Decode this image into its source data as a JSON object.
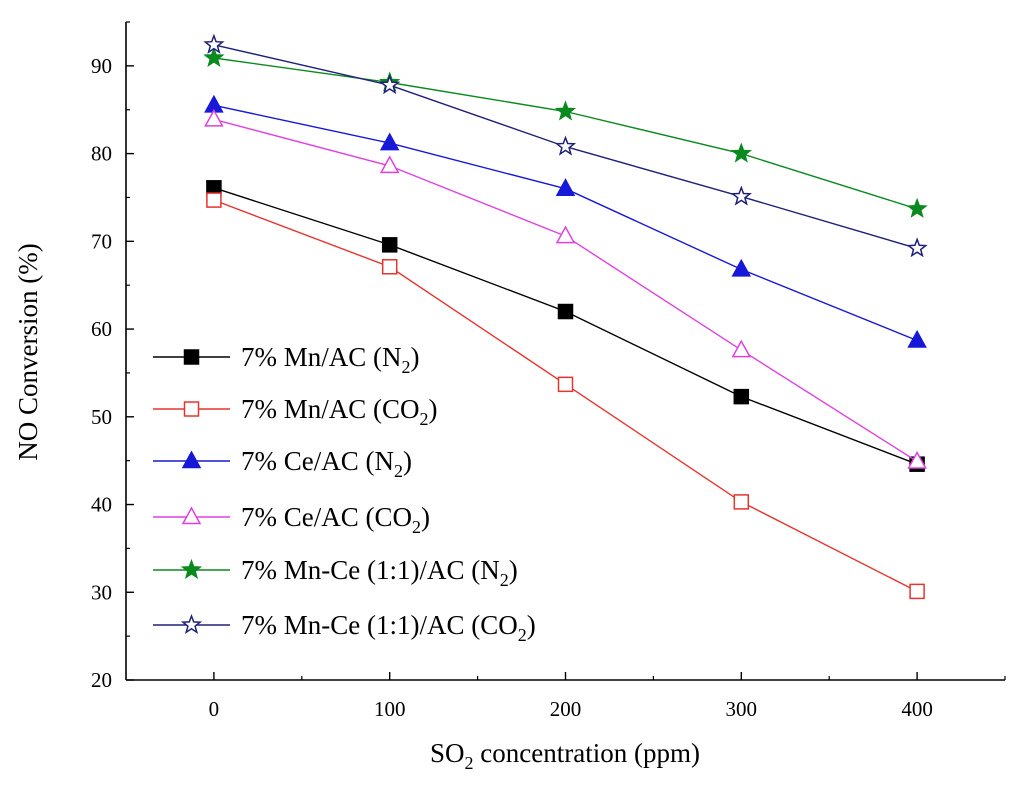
{
  "chart_data": {
    "type": "line",
    "xlabel": {
      "main": "SO",
      "sub": "2",
      "rest": " concentration (ppm)"
    },
    "ylabel": "NO Conversion (%)",
    "x": [
      0,
      100,
      200,
      300,
      400
    ],
    "x_ticks": [
      0,
      100,
      200,
      300,
      400
    ],
    "y_ticks": [
      20,
      30,
      40,
      50,
      60,
      70,
      80,
      90
    ],
    "x_tick_labels": [
      "0",
      "100",
      "200",
      "300",
      "400"
    ],
    "y_tick_labels": [
      "20",
      "30",
      "40",
      "50",
      "60",
      "70",
      "80",
      "90"
    ],
    "xlim": [
      -50,
      450
    ],
    "ylim": [
      20,
      95
    ],
    "grid": false,
    "legend_position": "bottom-left",
    "series": [
      {
        "name": "7% Mn/AC (N2)",
        "label": {
          "main": "7% Mn/AC (N",
          "sub": "2",
          "rest": ")"
        },
        "values": [
          76.1,
          69.6,
          62.0,
          52.3,
          44.6
        ],
        "color": "#000000",
        "marker": "square",
        "filled": true
      },
      {
        "name": "7% Mn/AC (CO2)",
        "label": {
          "main": "7% Mn/AC (CO",
          "sub": "2",
          "rest": ")"
        },
        "values": [
          74.7,
          67.1,
          53.7,
          40.3,
          30.1
        ],
        "color": "#e8342e",
        "marker": "square",
        "filled": false
      },
      {
        "name": "7% Ce/AC (N2)",
        "label": {
          "main": "7% Ce/AC (N",
          "sub": "2",
          "rest": ")"
        },
        "values": [
          85.5,
          81.2,
          76.0,
          66.8,
          58.7
        ],
        "color": "#1818d8",
        "marker": "triangle",
        "filled": true
      },
      {
        "name": "7% Ce/AC (CO2)",
        "label": {
          "main": "7% Ce/AC (CO",
          "sub": "2",
          "rest": ")"
        },
        "values": [
          83.9,
          78.6,
          70.6,
          57.6,
          44.9
        ],
        "color": "#e040e0",
        "marker": "triangle",
        "filled": false
      },
      {
        "name": "7% Mn-Ce (1:1)/AC (N2)",
        "label": {
          "main": "7% Mn-Ce (1:1)/AC (N",
          "sub": "2",
          "rest": ")"
        },
        "values": [
          90.9,
          88.1,
          84.8,
          80.0,
          73.7
        ],
        "color": "#0a8a1e",
        "marker": "star",
        "filled": true
      },
      {
        "name": "7% Mn-Ce (1:1)/AC (CO2)",
        "label": {
          "main": "7% Mn-Ce (1:1)/AC (CO",
          "sub": "2",
          "rest": ")"
        },
        "values": [
          92.4,
          87.8,
          80.8,
          75.1,
          69.2
        ],
        "color": "#20207a",
        "marker": "star",
        "filled": false
      }
    ]
  }
}
